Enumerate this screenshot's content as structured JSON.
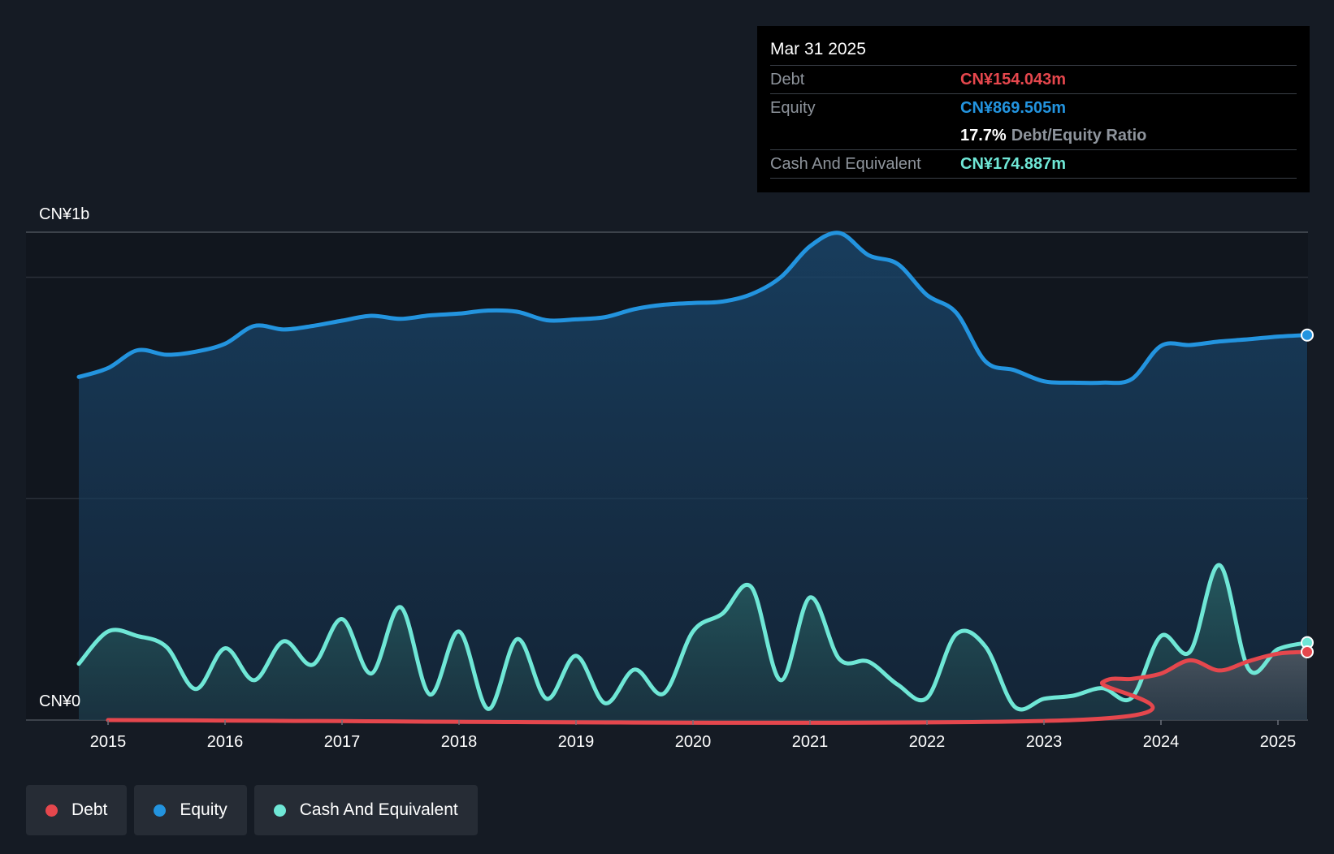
{
  "colors": {
    "debt": "#e5474d",
    "equity": "#2394df",
    "cash": "#6fe7d6",
    "background": "#151b24"
  },
  "tooltip": {
    "date": "Mar 31 2025",
    "debt_label": "Debt",
    "debt_value": "CN¥154.043m",
    "equity_label": "Equity",
    "equity_value": "CN¥869.505m",
    "ratio_value": "17.7%",
    "ratio_label": "Debt/Equity Ratio",
    "cash_label": "Cash And Equivalent",
    "cash_value": "CN¥174.887m"
  },
  "legend": {
    "debt": "Debt",
    "equity": "Equity",
    "cash": "Cash And Equivalent"
  },
  "chart_data": {
    "type": "area",
    "title": "",
    "xlabel": "",
    "ylabel": "",
    "y_top_label": "CN¥1b",
    "y_bottom_label": "CN¥0",
    "ylim": [
      0,
      1.1
    ],
    "y_unit": "CN¥ billions",
    "xlim": [
      2014.75,
      2025.25
    ],
    "x_ticks": [
      "2015",
      "2016",
      "2017",
      "2018",
      "2019",
      "2020",
      "2021",
      "2022",
      "2023",
      "2024",
      "2025"
    ],
    "grid": true,
    "legend_position": "bottom-left",
    "series": [
      {
        "name": "Equity",
        "points": [
          [
            2014.75,
            0.775
          ],
          [
            2015.0,
            0.795
          ],
          [
            2015.25,
            0.835
          ],
          [
            2015.5,
            0.825
          ],
          [
            2015.75,
            0.832
          ],
          [
            2016.0,
            0.85
          ],
          [
            2016.25,
            0.89
          ],
          [
            2016.5,
            0.882
          ],
          [
            2016.75,
            0.89
          ],
          [
            2017.0,
            0.902
          ],
          [
            2017.25,
            0.913
          ],
          [
            2017.5,
            0.906
          ],
          [
            2017.75,
            0.914
          ],
          [
            2018.0,
            0.918
          ],
          [
            2018.25,
            0.925
          ],
          [
            2018.5,
            0.922
          ],
          [
            2018.75,
            0.903
          ],
          [
            2019.0,
            0.905
          ],
          [
            2019.25,
            0.91
          ],
          [
            2019.5,
            0.928
          ],
          [
            2019.75,
            0.938
          ],
          [
            2020.0,
            0.942
          ],
          [
            2020.25,
            0.945
          ],
          [
            2020.5,
            0.962
          ],
          [
            2020.75,
            1.0
          ],
          [
            2021.0,
            1.07
          ],
          [
            2021.25,
            1.1
          ],
          [
            2021.5,
            1.05
          ],
          [
            2021.75,
            1.03
          ],
          [
            2022.0,
            0.96
          ],
          [
            2022.25,
            0.92
          ],
          [
            2022.5,
            0.81
          ],
          [
            2022.75,
            0.79
          ],
          [
            2023.0,
            0.765
          ],
          [
            2023.25,
            0.762
          ],
          [
            2023.5,
            0.762
          ],
          [
            2023.75,
            0.77
          ],
          [
            2024.0,
            0.845
          ],
          [
            2024.25,
            0.847
          ],
          [
            2024.5,
            0.855
          ],
          [
            2024.75,
            0.86
          ],
          [
            2025.0,
            0.866
          ],
          [
            2025.25,
            0.8695
          ]
        ]
      },
      {
        "name": "Cash And Equivalent",
        "points": [
          [
            2014.75,
            0.127
          ],
          [
            2015.0,
            0.2
          ],
          [
            2015.25,
            0.19
          ],
          [
            2015.5,
            0.165
          ],
          [
            2015.75,
            0.07
          ],
          [
            2016.0,
            0.162
          ],
          [
            2016.25,
            0.09
          ],
          [
            2016.5,
            0.178
          ],
          [
            2016.75,
            0.125
          ],
          [
            2017.0,
            0.228
          ],
          [
            2017.25,
            0.105
          ],
          [
            2017.5,
            0.255
          ],
          [
            2017.75,
            0.058
          ],
          [
            2018.0,
            0.2
          ],
          [
            2018.25,
            0.025
          ],
          [
            2018.5,
            0.183
          ],
          [
            2018.75,
            0.048
          ],
          [
            2019.0,
            0.145
          ],
          [
            2019.25,
            0.038
          ],
          [
            2019.5,
            0.114
          ],
          [
            2019.75,
            0.06
          ],
          [
            2020.0,
            0.2
          ],
          [
            2020.25,
            0.24
          ],
          [
            2020.5,
            0.3
          ],
          [
            2020.75,
            0.09
          ],
          [
            2021.0,
            0.277
          ],
          [
            2021.25,
            0.138
          ],
          [
            2021.5,
            0.132
          ],
          [
            2021.75,
            0.08
          ],
          [
            2022.0,
            0.05
          ],
          [
            2022.25,
            0.194
          ],
          [
            2022.5,
            0.166
          ],
          [
            2022.75,
            0.03
          ],
          [
            2023.0,
            0.048
          ],
          [
            2023.25,
            0.055
          ],
          [
            2023.5,
            0.072
          ],
          [
            2023.75,
            0.05
          ],
          [
            2024.0,
            0.19
          ],
          [
            2024.25,
            0.155
          ],
          [
            2024.5,
            0.35
          ],
          [
            2024.75,
            0.115
          ],
          [
            2025.0,
            0.16
          ],
          [
            2025.25,
            0.1749
          ]
        ]
      },
      {
        "name": "Debt",
        "points": [
          [
            2015.0,
            0.0
          ],
          [
            2023.25,
            0.0
          ],
          [
            2023.5,
            0.085
          ],
          [
            2023.75,
            0.093
          ],
          [
            2024.0,
            0.105
          ],
          [
            2024.25,
            0.135
          ],
          [
            2024.5,
            0.112
          ],
          [
            2024.75,
            0.133
          ],
          [
            2025.0,
            0.15
          ],
          [
            2025.25,
            0.154
          ]
        ]
      }
    ]
  }
}
